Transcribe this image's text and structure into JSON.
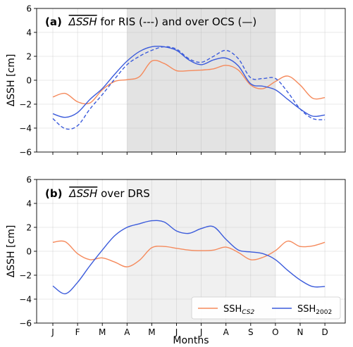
{
  "chart_data": [
    {
      "type": "line",
      "panel_label": "(a)",
      "title_parts": {
        "label": "(a)",
        "symbol": "ΔSSH",
        "rest": " for RIS (---) and over OCS  (—)"
      },
      "ylabel": "ΔSSH  [cm]",
      "xlabel": "",
      "ylim": [
        -6,
        6
      ],
      "yticks": [
        "6",
        "4",
        "2",
        "0",
        "−2",
        "−4",
        "−6"
      ],
      "ytick_values": [
        6,
        4,
        2,
        0,
        -2,
        -4,
        -6
      ],
      "categories": [
        "J",
        "F",
        "M",
        "A",
        "M",
        "J",
        "J",
        "A",
        "S",
        "O",
        "N",
        "D"
      ],
      "shaded_range": [
        "A",
        "O"
      ],
      "shade_color": "#e3e3e3",
      "grid": true,
      "series": [
        {
          "name": "SSH_CS2 (OCS)",
          "color": "#f58a5c",
          "style": "solid",
          "x": [
            1,
            1.5,
            2,
            2.5,
            3,
            3.5,
            4,
            4.5,
            5,
            5.5,
            6,
            6.5,
            7,
            7.5,
            8,
            8.5,
            9,
            9.5,
            10,
            10.5,
            11,
            11.5,
            12
          ],
          "values": [
            -1.4,
            -1.1,
            -1.8,
            -1.9,
            -0.8,
            -0.1,
            0.05,
            0.3,
            1.6,
            1.4,
            0.8,
            0.8,
            0.85,
            0.95,
            1.25,
            0.85,
            -0.4,
            -0.7,
            -0.1,
            0.35,
            -0.4,
            -1.5,
            -1.45
          ]
        },
        {
          "name": "SSH_2002 (OCS)",
          "color": "#3b5bdb",
          "style": "solid",
          "x": [
            1,
            1.5,
            2,
            2.5,
            3,
            3.5,
            4,
            4.5,
            5,
            5.5,
            6,
            6.5,
            7,
            7.5,
            8,
            8.5,
            9,
            9.5,
            10,
            10.5,
            11,
            11.5,
            12
          ],
          "values": [
            -2.8,
            -3.1,
            -2.7,
            -1.6,
            -0.7,
            0.5,
            1.6,
            2.4,
            2.8,
            2.8,
            2.5,
            1.7,
            1.3,
            1.7,
            1.85,
            1.2,
            -0.3,
            -0.5,
            -0.8,
            -1.6,
            -2.4,
            -3.0,
            -2.9
          ]
        },
        {
          "name": "SSH_2002 (RIS)",
          "color": "#3b5bdb",
          "style": "dashed",
          "x": [
            1,
            1.5,
            2,
            2.5,
            3,
            3.5,
            4,
            4.5,
            5,
            5.5,
            6,
            6.5,
            7,
            7.5,
            8,
            8.5,
            9,
            9.5,
            10,
            10.5,
            11,
            11.5,
            12
          ],
          "values": [
            -3.2,
            -4.05,
            -3.8,
            -2.4,
            -1.2,
            0.1,
            1.3,
            2.0,
            2.5,
            2.8,
            2.6,
            1.8,
            1.5,
            2.0,
            2.5,
            1.8,
            0.2,
            0.15,
            0.15,
            -1.0,
            -2.4,
            -3.2,
            -3.3
          ]
        }
      ]
    },
    {
      "type": "line",
      "panel_label": "(b)",
      "title_parts": {
        "label": "(b)",
        "symbol": "ΔSSH",
        "rest": " over DRS"
      },
      "ylabel": "ΔSSH  [cm]",
      "xlabel": "Months",
      "ylim": [
        -6,
        6
      ],
      "yticks": [
        "6",
        "4",
        "2",
        "0",
        "−2",
        "−4",
        "−6"
      ],
      "ytick_values": [
        6,
        4,
        2,
        0,
        -2,
        -4,
        -6
      ],
      "categories": [
        "J",
        "F",
        "M",
        "A",
        "M",
        "J",
        "J",
        "A",
        "S",
        "O",
        "N",
        "D"
      ],
      "shaded_range": [
        "A",
        "O"
      ],
      "shade_color": "#f0f0f0",
      "grid": true,
      "legend": {
        "placement": "lower-right",
        "entries": [
          {
            "base": "SSH",
            "sub": "CS2",
            "color": "#f58a5c"
          },
          {
            "base": "SSH",
            "sub": "2002",
            "color": "#3b5bdb"
          }
        ]
      },
      "series": [
        {
          "name": "SSH_CS2",
          "color": "#f58a5c",
          "style": "solid",
          "x": [
            1,
            1.5,
            2,
            2.5,
            3,
            3.5,
            4,
            4.5,
            5,
            5.5,
            6,
            6.5,
            7,
            7.5,
            8,
            8.5,
            9,
            9.5,
            10,
            10.5,
            11,
            11.5,
            12
          ],
          "values": [
            0.75,
            0.8,
            -0.2,
            -0.7,
            -0.55,
            -0.9,
            -1.3,
            -0.75,
            0.3,
            0.4,
            0.25,
            0.1,
            0.05,
            0.1,
            0.35,
            -0.1,
            -0.7,
            -0.5,
            0.05,
            0.85,
            0.4,
            0.45,
            0.75
          ]
        },
        {
          "name": "SSH_2002",
          "color": "#3b5bdb",
          "style": "solid",
          "x": [
            1,
            1.5,
            2,
            2.5,
            3,
            3.5,
            4,
            4.5,
            5,
            5.5,
            6,
            6.5,
            7,
            7.5,
            8,
            8.5,
            9,
            9.5,
            10,
            10.5,
            11,
            11.5,
            12
          ],
          "values": [
            -2.9,
            -3.55,
            -2.6,
            -1.2,
            0.1,
            1.3,
            2.0,
            2.3,
            2.55,
            2.45,
            1.7,
            1.5,
            1.9,
            2.05,
            1.0,
            0.1,
            -0.05,
            -0.2,
            -0.7,
            -1.6,
            -2.4,
            -2.95,
            -2.95
          ]
        }
      ]
    }
  ]
}
